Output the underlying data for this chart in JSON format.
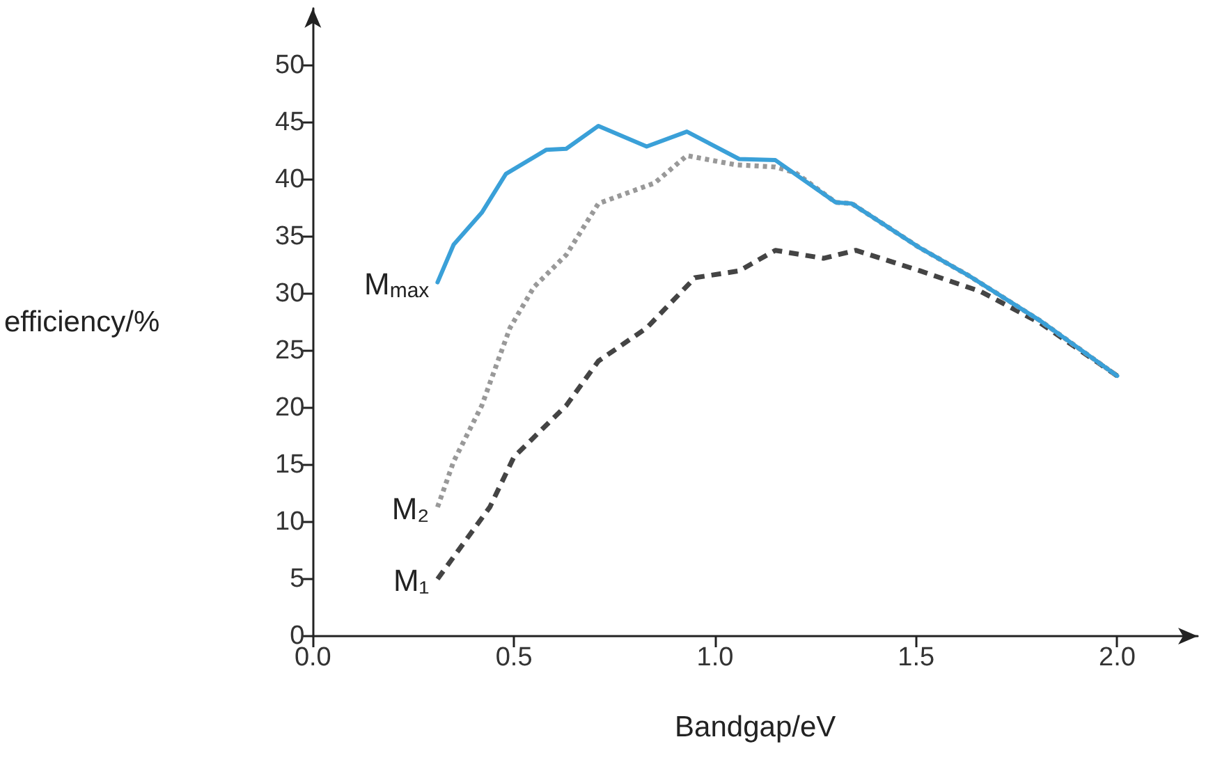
{
  "chart_data": {
    "type": "line",
    "xlabel": "Bandgap/eV",
    "ylabel": "efficiency/%",
    "xlim": [
      0,
      2.2
    ],
    "ylim": [
      0,
      55
    ],
    "xticks": [
      {
        "value": 0,
        "label": "0.0"
      },
      {
        "value": 0.5,
        "label": "0.5"
      },
      {
        "value": 1,
        "label": "1.0"
      },
      {
        "value": 1.5,
        "label": "1.5"
      },
      {
        "value": 2,
        "label": "2.0"
      }
    ],
    "yticks": [
      0,
      5,
      10,
      15,
      20,
      25,
      30,
      35,
      40,
      45,
      50
    ],
    "grid": false,
    "legend": false,
    "marker": "none",
    "series": [
      {
        "name": "M$_{max}$",
        "color": "#3aa0d8",
        "line_style": "solid",
        "x": [
          0.31,
          0.35,
          0.42,
          0.48,
          0.58,
          0.63,
          0.71,
          0.83,
          0.93,
          1.06,
          1.15,
          1.3,
          1.34,
          1.51,
          1.63,
          1.81,
          2.0
        ],
        "values": [
          31.0,
          34.3,
          37.1,
          40.5,
          42.6,
          42.7,
          44.7,
          42.9,
          44.2,
          41.8,
          41.7,
          38.0,
          37.9,
          34.0,
          31.6,
          27.6,
          22.8
        ]
      },
      {
        "name": "M₂",
        "color": "#999999",
        "line_style": "dotted",
        "x": [
          0.31,
          0.35,
          0.42,
          0.46,
          0.49,
          0.55,
          0.63,
          0.71,
          0.85,
          0.93,
          1.05,
          1.15,
          1.2,
          1.3,
          1.34,
          1.51,
          1.63,
          1.81,
          2.0
        ],
        "values": [
          11.3,
          15.3,
          20.2,
          24.1,
          27.0,
          30.6,
          33.4,
          37.9,
          39.7,
          42.1,
          41.3,
          41.1,
          40.6,
          38.0,
          37.9,
          34.0,
          31.6,
          27.6,
          22.8
        ]
      },
      {
        "name": "M₁",
        "color": "#444444",
        "line_style": "dashed",
        "x": [
          0.31,
          0.44,
          0.5,
          0.63,
          0.71,
          0.83,
          0.95,
          1.06,
          1.15,
          1.27,
          1.35,
          1.51,
          1.66,
          1.81,
          2.0
        ],
        "values": [
          5.0,
          11.3,
          15.7,
          20.2,
          24.1,
          27.0,
          31.4,
          32.0,
          33.8,
          33.1,
          33.8,
          32.0,
          30.2,
          27.4,
          22.8
        ]
      }
    ]
  }
}
